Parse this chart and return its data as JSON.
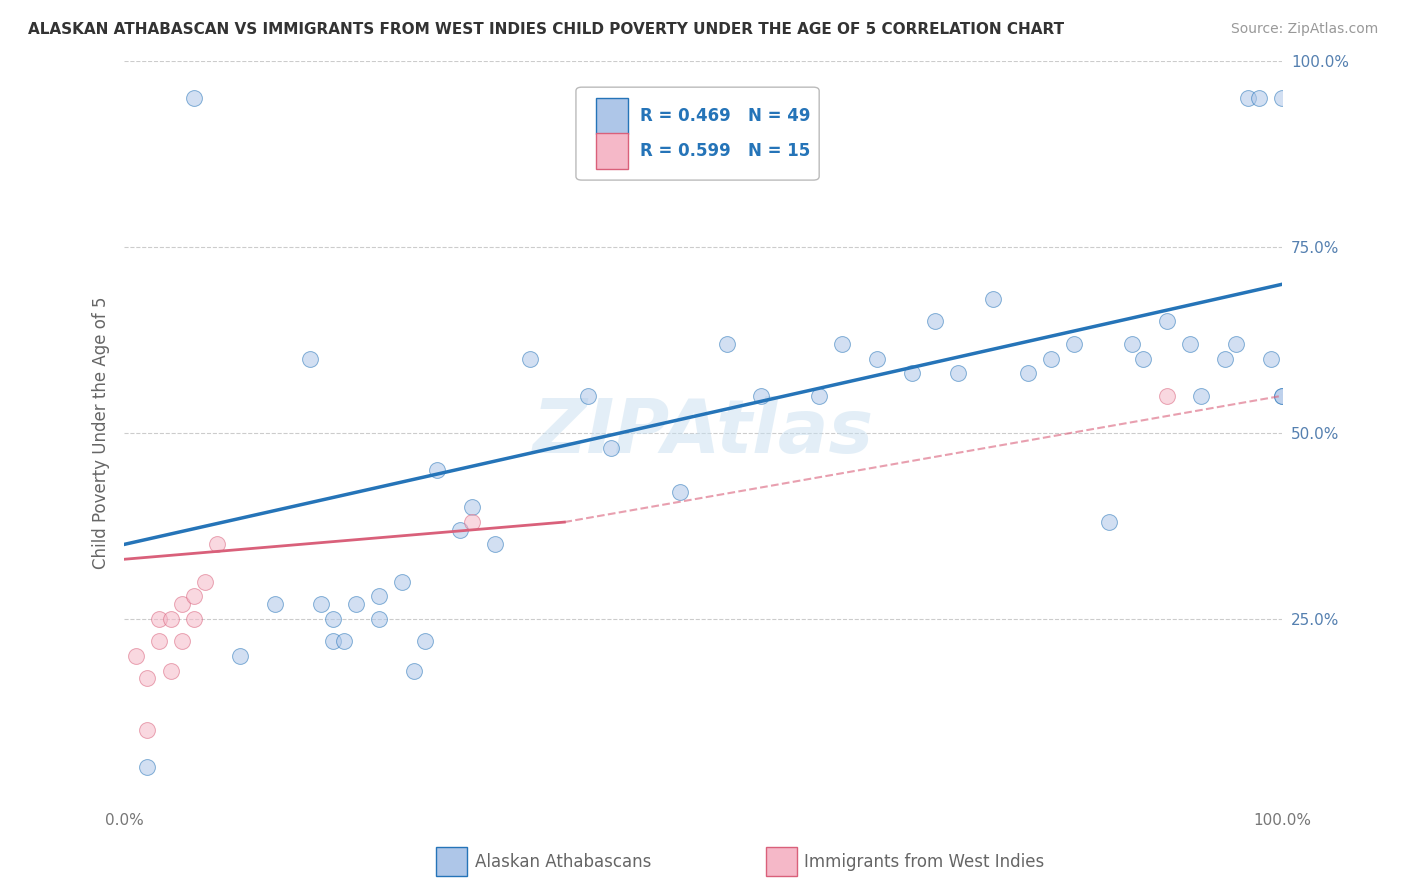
{
  "title": "ALASKAN ATHABASCAN VS IMMIGRANTS FROM WEST INDIES CHILD POVERTY UNDER THE AGE OF 5 CORRELATION CHART",
  "source": "Source: ZipAtlas.com",
  "ylabel": "Child Poverty Under the Age of 5",
  "background_color": "#ffffff",
  "watermark": "ZIPAtlas",
  "blue_scatter_x": [
    0.02,
    0.06,
    0.1,
    0.13,
    0.16,
    0.17,
    0.18,
    0.18,
    0.19,
    0.2,
    0.22,
    0.22,
    0.24,
    0.25,
    0.26,
    0.27,
    0.29,
    0.3,
    0.32,
    0.35,
    0.4,
    0.42,
    0.48,
    0.52,
    0.55,
    0.6,
    0.62,
    0.65,
    0.68,
    0.7,
    0.72,
    0.75,
    0.78,
    0.8,
    0.82,
    0.85,
    0.87,
    0.88,
    0.9,
    0.92,
    0.93,
    0.95,
    0.96,
    0.97,
    0.98,
    0.99,
    1.0,
    1.0,
    1.0
  ],
  "blue_scatter_y": [
    0.05,
    0.95,
    0.2,
    0.27,
    0.6,
    0.27,
    0.22,
    0.25,
    0.22,
    0.27,
    0.25,
    0.28,
    0.3,
    0.18,
    0.22,
    0.45,
    0.37,
    0.4,
    0.35,
    0.6,
    0.55,
    0.48,
    0.42,
    0.62,
    0.55,
    0.55,
    0.62,
    0.6,
    0.58,
    0.65,
    0.58,
    0.68,
    0.58,
    0.6,
    0.62,
    0.38,
    0.62,
    0.6,
    0.65,
    0.62,
    0.55,
    0.6,
    0.62,
    0.95,
    0.95,
    0.6,
    0.55,
    0.95,
    0.55
  ],
  "pink_scatter_x": [
    0.01,
    0.02,
    0.02,
    0.03,
    0.03,
    0.04,
    0.04,
    0.05,
    0.05,
    0.06,
    0.06,
    0.07,
    0.08,
    0.3,
    0.9
  ],
  "pink_scatter_y": [
    0.2,
    0.1,
    0.17,
    0.22,
    0.25,
    0.18,
    0.25,
    0.22,
    0.27,
    0.25,
    0.28,
    0.3,
    0.35,
    0.38,
    0.55
  ],
  "R_blue": 0.469,
  "N_blue": 49,
  "R_pink": 0.599,
  "N_pink": 15,
  "blue_color": "#aec6e8",
  "pink_color": "#f5b8c8",
  "blue_line_color": "#2574b8",
  "pink_line_color": "#d9607a",
  "legend_text_color": "#2574b8",
  "grid_color": "#cccccc",
  "title_color": "#333333",
  "marker_size": 130,
  "marker_alpha": 0.55,
  "xlim": [
    0.0,
    1.0
  ],
  "ylim": [
    0.0,
    1.0
  ],
  "ytick_positions": [
    0.0,
    0.25,
    0.5,
    0.75,
    1.0
  ],
  "ytick_labels": [
    "",
    "25.0%",
    "50.0%",
    "75.0%",
    "100.0%"
  ]
}
